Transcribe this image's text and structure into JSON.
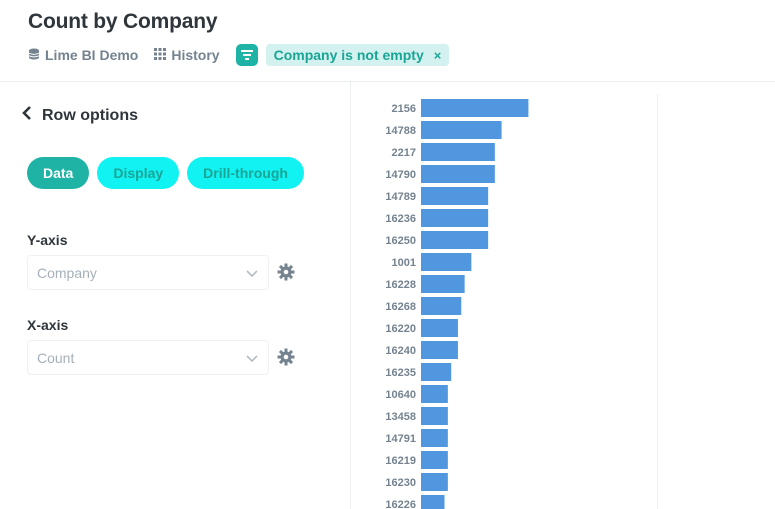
{
  "header": {
    "title": "Count by Company",
    "database": "Lime BI Demo",
    "history": "History",
    "filter_label": "Company is not empty",
    "filter_close": "×"
  },
  "left_panel": {
    "back_label": "Row options",
    "tabs": [
      {
        "label": "Data",
        "active": true
      },
      {
        "label": "Display",
        "active": false
      },
      {
        "label": "Drill-through",
        "active": false
      }
    ],
    "y_axis": {
      "label": "Y-axis",
      "value": "Company"
    },
    "x_axis": {
      "label": "X-axis",
      "value": "Count"
    }
  },
  "colors": {
    "accent": "#1fb3a6",
    "accent_light": "#d3f1ee",
    "inactive_tab": "#11f2f2",
    "bar": "#5097e0",
    "muted": "#74838f"
  },
  "chart_data": {
    "type": "bar",
    "orientation": "horizontal",
    "categories": [
      "2156",
      "14788",
      "2217",
      "14790",
      "14789",
      "16236",
      "16250",
      "1001",
      "16228",
      "16268",
      "16220",
      "16240",
      "16235",
      "10640",
      "13458",
      "14791",
      "16219",
      "16230",
      "16226"
    ],
    "values": [
      32,
      24,
      22,
      22,
      20,
      20,
      20,
      15,
      13,
      12,
      11,
      11,
      9,
      8,
      8,
      8,
      8,
      8,
      7
    ],
    "xlim": [
      0,
      70
    ],
    "grid": false
  }
}
